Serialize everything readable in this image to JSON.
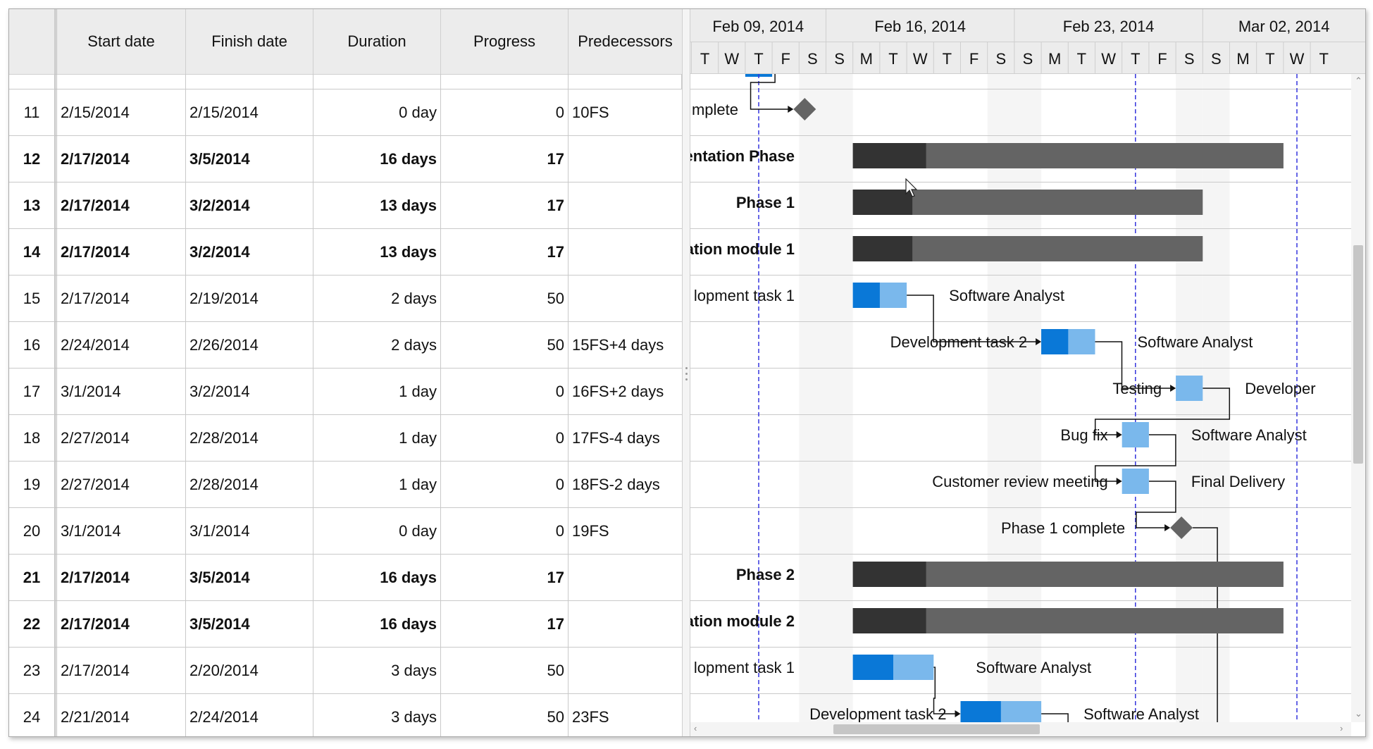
{
  "columns": {
    "start_date": "Start date",
    "finish_date": "Finish date",
    "duration": "Duration",
    "progress": "Progress",
    "predecessors": "Predecessors"
  },
  "rows": [
    {
      "id": "11",
      "start": "2/15/2014",
      "finish": "2/15/2014",
      "duration": "0 day",
      "progress": "0",
      "pred": "10FS",
      "bold": false
    },
    {
      "id": "12",
      "start": "2/17/2014",
      "finish": "3/5/2014",
      "duration": "16 days",
      "progress": "17",
      "pred": "",
      "bold": true
    },
    {
      "id": "13",
      "start": "2/17/2014",
      "finish": "3/2/2014",
      "duration": "13 days",
      "progress": "17",
      "pred": "",
      "bold": true
    },
    {
      "id": "14",
      "start": "2/17/2014",
      "finish": "3/2/2014",
      "duration": "13 days",
      "progress": "17",
      "pred": "",
      "bold": true
    },
    {
      "id": "15",
      "start": "2/17/2014",
      "finish": "2/19/2014",
      "duration": "2 days",
      "progress": "50",
      "pred": "",
      "bold": false
    },
    {
      "id": "16",
      "start": "2/24/2014",
      "finish": "2/26/2014",
      "duration": "2 days",
      "progress": "50",
      "pred": "15FS+4 days",
      "bold": false
    },
    {
      "id": "17",
      "start": "3/1/2014",
      "finish": "3/2/2014",
      "duration": "1 day",
      "progress": "0",
      "pred": "16FS+2 days",
      "bold": false
    },
    {
      "id": "18",
      "start": "2/27/2014",
      "finish": "2/28/2014",
      "duration": "1 day",
      "progress": "0",
      "pred": "17FS-4 days",
      "bold": false
    },
    {
      "id": "19",
      "start": "2/27/2014",
      "finish": "2/28/2014",
      "duration": "1 day",
      "progress": "0",
      "pred": "18FS-2 days",
      "bold": false
    },
    {
      "id": "20",
      "start": "3/1/2014",
      "finish": "3/1/2014",
      "duration": "0 day",
      "progress": "0",
      "pred": "19FS",
      "bold": false
    },
    {
      "id": "21",
      "start": "2/17/2014",
      "finish": "3/5/2014",
      "duration": "16 days",
      "progress": "17",
      "pred": "",
      "bold": true
    },
    {
      "id": "22",
      "start": "2/17/2014",
      "finish": "3/5/2014",
      "duration": "16 days",
      "progress": "17",
      "pred": "",
      "bold": true
    },
    {
      "id": "23",
      "start": "2/17/2014",
      "finish": "2/20/2014",
      "duration": "3 days",
      "progress": "50",
      "pred": "",
      "bold": false
    },
    {
      "id": "24",
      "start": "2/21/2014",
      "finish": "2/24/2014",
      "duration": "3 days",
      "progress": "50",
      "pred": "23FS",
      "bold": false
    }
  ],
  "timeline": {
    "weeks": [
      "Feb 09, 2014",
      "Feb 16, 2014",
      "Feb 23, 2014",
      "Mar 02, 2014"
    ],
    "days": [
      "T",
      "W",
      "T",
      "F",
      "S",
      "S",
      "M",
      "T",
      "W",
      "T",
      "F",
      "S",
      "S",
      "M",
      "T",
      "W",
      "T",
      "F",
      "S",
      "S",
      "M",
      "T",
      "W",
      "T"
    ]
  },
  "tasks": [
    {
      "row": 0,
      "type": "milestone",
      "start": "2014-02-15",
      "label": "mplete",
      "label_pos": "left",
      "bold": false
    },
    {
      "row": 1,
      "type": "summary",
      "start": "2014-02-17",
      "end": "2014-03-05",
      "progress": 17,
      "label": "entation Phase",
      "label_pos": "left",
      "bold": true
    },
    {
      "row": 2,
      "type": "summary",
      "start": "2014-02-17",
      "end": "2014-03-02",
      "progress": 17,
      "label": "Phase 1",
      "label_pos": "left",
      "bold": true
    },
    {
      "row": 3,
      "type": "summary",
      "start": "2014-02-17",
      "end": "2014-03-02",
      "progress": 17,
      "label": "ation module 1",
      "label_pos": "left",
      "bold": true
    },
    {
      "row": 4,
      "type": "task",
      "start": "2014-02-17",
      "end": "2014-02-19",
      "progress": 50,
      "label": "lopment task 1",
      "label_pos": "left",
      "resource": "Software Analyst",
      "bold": false
    },
    {
      "row": 5,
      "type": "task",
      "start": "2014-02-24",
      "end": "2014-02-26",
      "progress": 50,
      "label": "Development task 2",
      "resource": "Software Analyst",
      "bold": false
    },
    {
      "row": 6,
      "type": "task",
      "start": "2014-03-01",
      "end": "2014-03-02",
      "progress": 0,
      "label": "Testing",
      "resource": "Developer",
      "bold": false
    },
    {
      "row": 7,
      "type": "task",
      "start": "2014-02-27",
      "end": "2014-02-28",
      "progress": 0,
      "label": "Bug fix",
      "resource": "Software Analyst",
      "bold": false
    },
    {
      "row": 8,
      "type": "task",
      "start": "2014-02-27",
      "end": "2014-02-28",
      "progress": 0,
      "label": "Customer review meeting",
      "resource": "Final Delivery",
      "bold": false
    },
    {
      "row": 9,
      "type": "milestone",
      "start": "2014-03-01",
      "label": "Phase 1 complete",
      "bold": false
    },
    {
      "row": 10,
      "type": "summary",
      "start": "2014-02-17",
      "end": "2014-03-05",
      "progress": 17,
      "label": "Phase 2",
      "label_pos": "left",
      "bold": true
    },
    {
      "row": 11,
      "type": "summary",
      "start": "2014-02-17",
      "end": "2014-03-05",
      "progress": 17,
      "label": "ation module 2",
      "label_pos": "left",
      "bold": true
    },
    {
      "row": 12,
      "type": "task",
      "start": "2014-02-17",
      "end": "2014-02-20",
      "progress": 50,
      "label": "lopment task 1",
      "label_pos": "left",
      "resource": "Software Analyst",
      "bold": false
    },
    {
      "row": 13,
      "type": "task",
      "start": "2014-02-21",
      "end": "2014-02-24",
      "progress": 50,
      "label": "Development task 2",
      "resource": "Software Analyst",
      "bold": false
    }
  ],
  "colors": {
    "summary_done": "#333333",
    "summary_rest": "#646464",
    "task_done": "#0a78d7",
    "task_rest": "#7ab8ec",
    "milestone": "#646464",
    "connector": "#111111",
    "marker_line": "#3333dd",
    "today": "#0a78d7",
    "weekend": "#f5f5f5"
  },
  "icons": {
    "scroll_up": "chevron-up-icon",
    "scroll_down": "chevron-down-icon",
    "scroll_left": "chevron-left-icon",
    "scroll_right": "chevron-right-icon",
    "cursor": "mouse-pointer-icon"
  }
}
